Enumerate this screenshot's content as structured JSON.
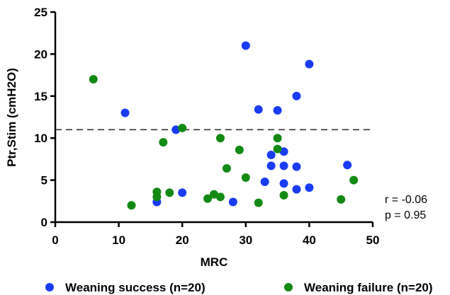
{
  "chart_data": {
    "type": "scatter",
    "xlabel": "MRC",
    "ylabel": "Ptr,Stim (cmH2O)",
    "xlim": [
      0,
      50
    ],
    "ylim": [
      0,
      25
    ],
    "x_ticks": [
      0,
      10,
      20,
      30,
      40,
      50
    ],
    "y_ticks": [
      0,
      5,
      10,
      15,
      20,
      25
    ],
    "grid": false,
    "legend_placement": "bottom",
    "reference_line": {
      "y": 11,
      "style": "dashed",
      "color": "#333333"
    },
    "annotations": [
      "r = -0.06",
      "p = 0.95"
    ],
    "series": [
      {
        "name": "Weaning success (n=20)",
        "color": "#1a3cf5",
        "points": [
          {
            "x": 11,
            "y": 13
          },
          {
            "x": 16,
            "y": 2.4
          },
          {
            "x": 19,
            "y": 11
          },
          {
            "x": 20,
            "y": 3.5
          },
          {
            "x": 28,
            "y": 2.4
          },
          {
            "x": 30,
            "y": 21
          },
          {
            "x": 32,
            "y": 13.4
          },
          {
            "x": 33,
            "y": 4.8
          },
          {
            "x": 34,
            "y": 8
          },
          {
            "x": 34,
            "y": 6.7
          },
          {
            "x": 35,
            "y": 13.3
          },
          {
            "x": 36,
            "y": 8.4
          },
          {
            "x": 36,
            "y": 6.7
          },
          {
            "x": 36,
            "y": 4.6
          },
          {
            "x": 38,
            "y": 15
          },
          {
            "x": 38,
            "y": 6.6
          },
          {
            "x": 38,
            "y": 3.9
          },
          {
            "x": 40,
            "y": 18.8
          },
          {
            "x": 40,
            "y": 4.1
          },
          {
            "x": 46,
            "y": 6.8
          }
        ]
      },
      {
        "name": "Weaning failure (n=20)",
        "color": "#138a13",
        "points": [
          {
            "x": 6,
            "y": 17
          },
          {
            "x": 12,
            "y": 2
          },
          {
            "x": 16,
            "y": 3.6
          },
          {
            "x": 16,
            "y": 3
          },
          {
            "x": 17,
            "y": 9.5
          },
          {
            "x": 18,
            "y": 3.5
          },
          {
            "x": 20,
            "y": 11.2
          },
          {
            "x": 24,
            "y": 2.8
          },
          {
            "x": 25,
            "y": 3.3
          },
          {
            "x": 26,
            "y": 10
          },
          {
            "x": 26,
            "y": 3
          },
          {
            "x": 27,
            "y": 6.4
          },
          {
            "x": 29,
            "y": 8.6
          },
          {
            "x": 30,
            "y": 5.3
          },
          {
            "x": 32,
            "y": 2.3
          },
          {
            "x": 35,
            "y": 10
          },
          {
            "x": 35,
            "y": 8.7
          },
          {
            "x": 36,
            "y": 3.2
          },
          {
            "x": 45,
            "y": 2.7
          },
          {
            "x": 47,
            "y": 5
          }
        ]
      }
    ]
  }
}
